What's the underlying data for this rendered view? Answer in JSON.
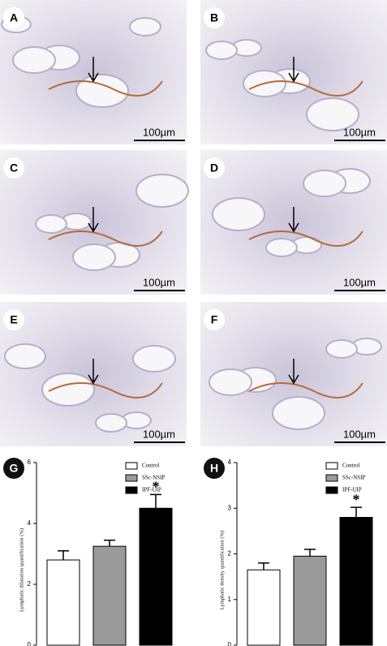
{
  "panels": [
    {
      "label": "A",
      "scale": "100µm"
    },
    {
      "label": "B",
      "scale": "100µm"
    },
    {
      "label": "C",
      "scale": "100µm"
    },
    {
      "label": "D",
      "scale": "100µm"
    },
    {
      "label": "E",
      "scale": "100µm"
    },
    {
      "label": "F",
      "scale": "100µm"
    }
  ],
  "chart_data": [
    {
      "type": "bar",
      "panel_label": "G",
      "y_label": "Lymphatic dilatation quantification (%)",
      "series": [
        {
          "name": "Control",
          "color": "#ffffff",
          "values": [
            2.8
          ],
          "errors": [
            0.3
          ]
        },
        {
          "name": "SSc-NSIP",
          "color": "#9a9a9a",
          "values": [
            3.25
          ],
          "errors": [
            0.2
          ]
        },
        {
          "name": "IPF-UIP",
          "color": "#000000",
          "values": [
            4.5
          ],
          "errors": [
            0.45
          ]
        }
      ],
      "annotation": "*",
      "ylim": [
        0,
        6
      ],
      "yticks": [
        0,
        2,
        4,
        6
      ]
    },
    {
      "type": "bar",
      "panel_label": "H",
      "y_label": "Lymphatic density quantification (%)",
      "series": [
        {
          "name": "Control",
          "color": "#ffffff",
          "values": [
            1.65
          ],
          "errors": [
            0.15
          ]
        },
        {
          "name": "SSc-NSIP",
          "color": "#9a9a9a",
          "values": [
            1.95
          ],
          "errors": [
            0.15
          ]
        },
        {
          "name": "IPF-UIP",
          "color": "#000000",
          "values": [
            2.8
          ],
          "errors": [
            0.22
          ]
        }
      ],
      "annotation": "*",
      "ylim": [
        0,
        4
      ],
      "yticks": [
        0,
        1,
        2,
        3,
        4
      ]
    }
  ]
}
